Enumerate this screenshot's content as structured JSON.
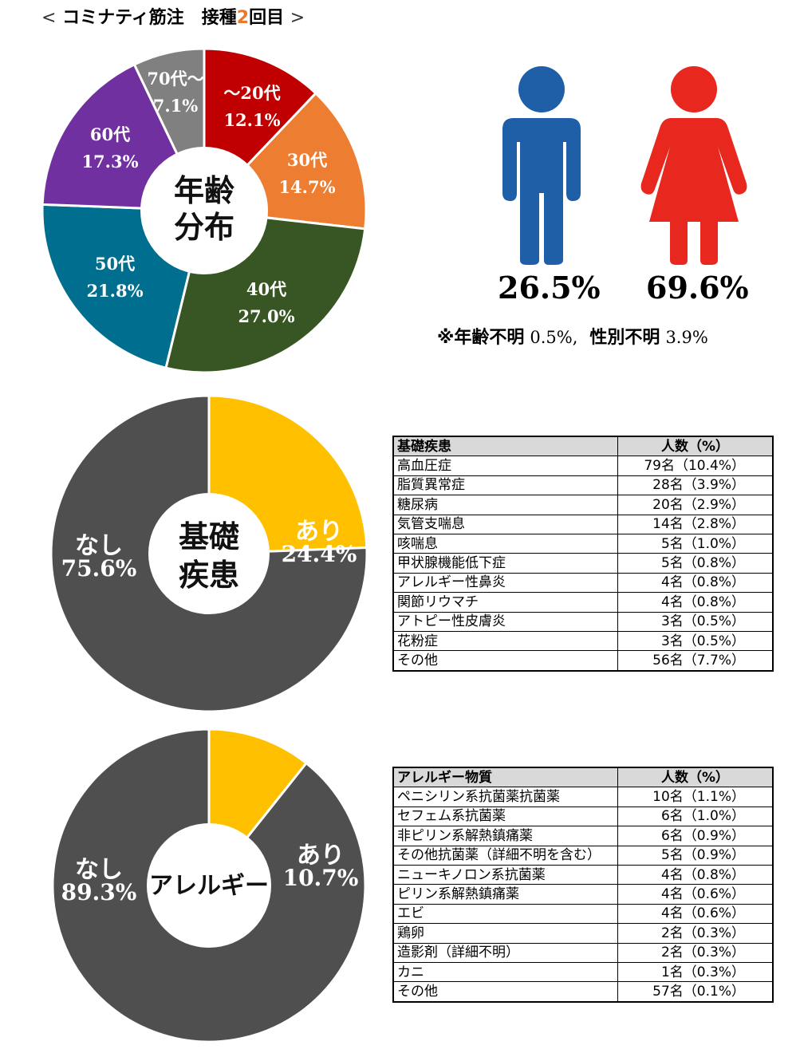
{
  "title": {
    "open": "<",
    "text": "コミナティ筋注　接種",
    "number": "2",
    "suffix": "回目",
    "close": ">"
  },
  "chart_data": [
    {
      "type": "pie",
      "center_label": [
        "年齢",
        "分布"
      ],
      "categories": [
        "〜20代",
        "30代",
        "40代",
        "50代",
        "60代",
        "70代〜"
      ],
      "values": [
        12.1,
        14.7,
        27.0,
        21.8,
        17.3,
        7.1
      ],
      "value_labels": [
        "12.1%",
        "14.7%",
        "27.0%",
        "21.8%",
        "17.3%",
        "7.1%"
      ],
      "colors": [
        "#C00000",
        "#ED7D31",
        "#375623",
        "#006E8E",
        "#7030A0",
        "#808080"
      ]
    },
    {
      "type": "pie",
      "center_label": [
        "基礎",
        "疾患"
      ],
      "categories": [
        "あり",
        "なし"
      ],
      "values": [
        24.4,
        75.6
      ],
      "value_labels": [
        "24.4%",
        "75.6%"
      ],
      "colors": [
        "#FFC000",
        "#4F4F4F"
      ]
    },
    {
      "type": "pie",
      "center_label": [
        "アレルギー"
      ],
      "categories": [
        "あり",
        "なし"
      ],
      "values": [
        10.7,
        89.3
      ],
      "value_labels": [
        "10.7%",
        "89.3%"
      ],
      "colors": [
        "#FFC000",
        "#4F4F4F"
      ]
    }
  ],
  "gender": {
    "male_pct": "26.5%",
    "female_pct": "69.6%",
    "male_color": "#1F5FA8",
    "female_color": "#E8281E",
    "male_icon": "male-person-icon",
    "female_icon": "female-person-icon"
  },
  "note": {
    "age_label": "※年齢不明",
    "age_value": "0.5%,",
    "gender_label": "性別不明",
    "gender_value": "3.9%"
  },
  "disease_table": {
    "headers": [
      "基礎疾患",
      "人数（%）"
    ],
    "rows": [
      [
        "高血圧症",
        "79名（10.4%）"
      ],
      [
        "脂質異常症",
        "28名（3.9%）"
      ],
      [
        "糖尿病",
        "20名（2.9%）"
      ],
      [
        "気管支喘息",
        "14名（2.8%）"
      ],
      [
        "咳喘息",
        "5名（1.0%）"
      ],
      [
        "甲状腺機能低下症",
        "5名（0.8%）"
      ],
      [
        "アレルギー性鼻炎",
        "4名（0.8%）"
      ],
      [
        "関節リウマチ",
        "4名（0.8%）"
      ],
      [
        "アトピー性皮膚炎",
        "3名（0.5%）"
      ],
      [
        "花粉症",
        "3名（0.5%）"
      ],
      [
        "その他",
        "56名（7.7%）"
      ]
    ]
  },
  "allergy_table": {
    "headers": [
      "アレルギー物質",
      "人数（%）"
    ],
    "rows": [
      [
        "ペニシリン系抗菌薬抗菌薬",
        "10名（1.1%）"
      ],
      [
        "セフェム系抗菌薬",
        "6名（1.0%）"
      ],
      [
        "非ピリン系解熱鎮痛薬",
        "6名（0.9%）"
      ],
      [
        "その他抗菌薬（詳細不明を含む）",
        "5名（0.9%）"
      ],
      [
        "ニューキノロン系抗菌薬",
        "4名（0.8%）"
      ],
      [
        "ピリン系解熱鎮痛薬",
        "4名（0.6%）"
      ],
      [
        "エビ",
        "4名（0.6%）"
      ],
      [
        "鶏卵",
        "2名（0.3%）"
      ],
      [
        "造影剤（詳細不明）",
        "2名（0.3%）"
      ],
      [
        "カニ",
        "1名（0.3%）"
      ],
      [
        "その他",
        "57名（0.1%）"
      ]
    ]
  }
}
